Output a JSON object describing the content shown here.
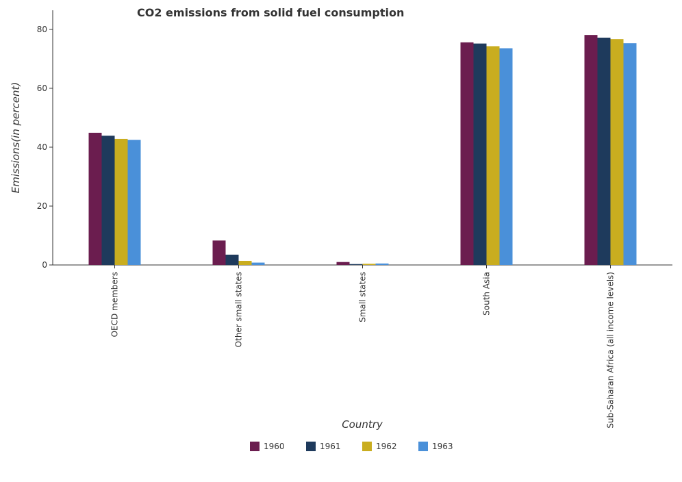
{
  "chart_data": {
    "type": "bar",
    "title": "CO2 emissions from solid fuel consumption",
    "x_label": "Country",
    "y_label": "Emissions(in percent)",
    "categories": [
      "OECD members",
      "Other small states",
      "Small states",
      "South Asia",
      "Sub-Saharan Africa (all income levels)"
    ],
    "series": [
      {
        "name": "1960",
        "color": "#6b1d4f",
        "values": [
          44.9,
          8.3,
          1.0,
          75.6,
          78.1
        ]
      },
      {
        "name": "1961",
        "color": "#1e3a5c",
        "values": [
          43.9,
          3.5,
          0.3,
          75.2,
          77.2
        ]
      },
      {
        "name": "1962",
        "color": "#c9ad1f",
        "values": [
          42.8,
          1.4,
          0.4,
          74.3,
          76.7
        ]
      },
      {
        "name": "1963",
        "color": "#4a90d9",
        "values": [
          42.5,
          0.8,
          0.5,
          73.6,
          75.3
        ]
      }
    ],
    "ylim": [
      0,
      86.5
    ],
    "yticks": [
      0,
      20,
      40,
      60,
      80
    ],
    "grid": false,
    "legend": "bottom"
  }
}
